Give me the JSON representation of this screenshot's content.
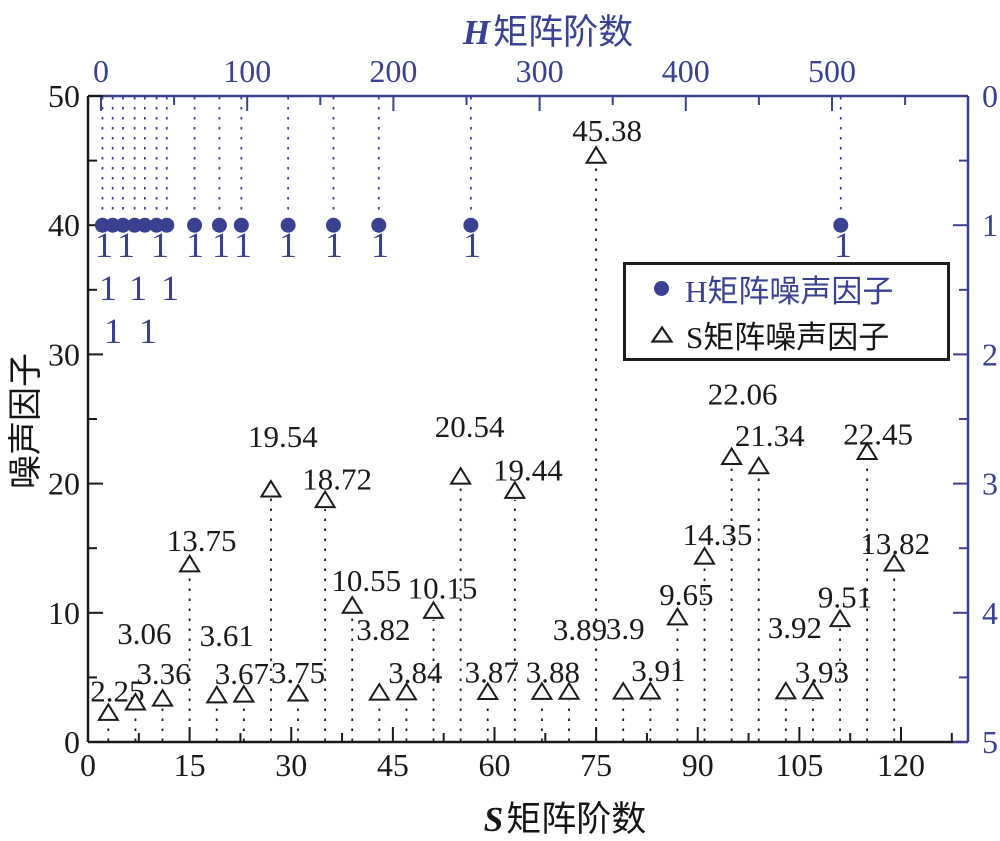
{
  "titles": {
    "top_var": "H",
    "top_text": "矩阵阶数",
    "bottom_var": "S",
    "bottom_text": "矩阵阶数",
    "left": "噪声因子"
  },
  "legend": {
    "h_label": "H矩阵噪声因子",
    "s_label": "S矩阵噪声因子",
    "h_marker": "filled-circle",
    "s_marker": "open-triangle"
  },
  "colors": {
    "navy": "#3a4191",
    "black": "#1a1a1a",
    "background": "#ffffff"
  },
  "chart_data": {
    "type": "scatter",
    "subtype": "stem",
    "axes": {
      "top": {
        "label": "H矩阵阶数",
        "range": [
          0,
          593
        ],
        "tick_labels": [
          0,
          100,
          200,
          300,
          400,
          500
        ],
        "minor_step": 50,
        "color": "navy"
      },
      "bottom": {
        "label": "S矩阵阶数",
        "range": [
          0,
          130
        ],
        "tick_labels": [
          0,
          15,
          30,
          45,
          60,
          75,
          90,
          105,
          120
        ],
        "minor_step": 7.5,
        "color": "black"
      },
      "left": {
        "label": "噪声因子",
        "range": [
          0,
          50
        ],
        "tick_labels": [
          0,
          10,
          20,
          30,
          40,
          50
        ],
        "minor_step": 5,
        "color": "black"
      },
      "right": {
        "label": "",
        "range": [
          0,
          5
        ],
        "inverted": true,
        "tick_labels": [
          0,
          1,
          2,
          3,
          4,
          5
        ],
        "minor_step": 0.5,
        "color": "navy"
      }
    },
    "grid": false,
    "legend_position": "upper-right-inside",
    "series": [
      {
        "name": "H矩阵噪声因子",
        "marker": "filled-circle",
        "color": "#3a4191",
        "x_axis": "top",
        "y_axis": "right",
        "x": [
          1,
          8,
          15,
          23,
          30,
          38,
          45,
          64,
          81,
          96,
          128,
          159,
          190,
          253,
          506
        ],
        "y": [
          1,
          1,
          1,
          1,
          1,
          1,
          1,
          1,
          1,
          1,
          1,
          1,
          1,
          1,
          1
        ]
      },
      {
        "name": "S矩阵噪声因子",
        "marker": "open-triangle",
        "color": "#1a1a1a",
        "x_axis": "bottom",
        "y_axis": "left",
        "points": [
          {
            "x": 3,
            "y": 2.25,
            "label": "2.25",
            "dx": 9,
            "dy": -22
          },
          {
            "x": 7,
            "y": 3.06,
            "label": "3.06",
            "dx": 9,
            "dy": -69
          },
          {
            "x": 11,
            "y": 3.36,
            "label": "3.36",
            "dx": 1,
            "dy": -25
          },
          {
            "x": 15,
            "y": 13.75,
            "label": "13.75",
            "dx": 12,
            "dy": -24
          },
          {
            "x": 19,
            "y": 3.61,
            "label": "3.61",
            "dx": 10,
            "dy": -60
          },
          {
            "x": 23,
            "y": 3.67,
            "label": "3.67",
            "dx": -2,
            "dy": -21
          },
          {
            "x": 27,
            "y": 19.54,
            "label": "19.54",
            "dx": 12,
            "dy": -53
          },
          {
            "x": 31,
            "y": 3.75,
            "label": "3.75",
            "dx": 0,
            "dy": -21
          },
          {
            "x": 35,
            "y": 18.72,
            "label": "18.72",
            "dx": 12,
            "dy": -21
          },
          {
            "x": 39,
            "y": 10.55,
            "label": "10.55",
            "dx": 14,
            "dy": -25
          },
          {
            "x": 43,
            "y": 3.82,
            "label": "3.82",
            "dx": 4,
            "dy": -63
          },
          {
            "x": 47,
            "y": 3.84,
            "label": "3.84",
            "dx": 9,
            "dy": -20
          },
          {
            "x": 51,
            "y": 10.15,
            "label": "10.15",
            "dx": 9,
            "dy": -23
          },
          {
            "x": 55,
            "y": 20.54,
            "label": "20.54",
            "dx": 9,
            "dy": -50
          },
          {
            "x": 59,
            "y": 3.87,
            "label": "3.87",
            "dx": 4,
            "dy": -20
          },
          {
            "x": 63,
            "y": 19.44,
            "label": "19.44",
            "dx": 13,
            "dy": -21
          },
          {
            "x": 67,
            "y": 3.88,
            "label": "3.88",
            "dx": 11,
            "dy": -20
          },
          {
            "x": 71,
            "y": 3.89,
            "label": "3.89",
            "dx": 11,
            "dy": -62
          },
          {
            "x": 75,
            "y": 45.38,
            "label": "45.38",
            "dx": 11,
            "dy": -25
          },
          {
            "x": 79,
            "y": 3.9,
            "label": "3.9",
            "dx": 2,
            "dy": -63
          },
          {
            "x": 83,
            "y": 3.91,
            "label": "3.91",
            "dx": 8,
            "dy": -21
          },
          {
            "x": 87,
            "y": 9.65,
            "label": "9.65",
            "dx": 9,
            "dy": -23
          },
          {
            "x": 91,
            "y": 14.35,
            "label": "14.35",
            "dx": 13,
            "dy": -22
          },
          {
            "x": 95,
            "y": 22.06,
            "label": "22.06",
            "dx": 11,
            "dy": -63
          },
          {
            "x": 99,
            "y": 21.34,
            "label": "21.34",
            "dx": 11,
            "dy": -31
          },
          {
            "x": 103,
            "y": 3.92,
            "label": "3.92",
            "dx": 9,
            "dy": -64
          },
          {
            "x": 107,
            "y": 3.93,
            "label": "3.93",
            "dx": 9,
            "dy": -19
          },
          {
            "x": 111,
            "y": 9.51,
            "label": "9.51",
            "dx": 5,
            "dy": -22
          },
          {
            "x": 115,
            "y": 22.45,
            "label": "22.45",
            "dx": 11,
            "dy": -18
          },
          {
            "x": 119,
            "y": 13.82,
            "label": "13.82",
            "dx": 1,
            "dy": -20
          }
        ]
      }
    ],
    "h_value_labels": {
      "text": "1",
      "rows": [
        {
          "y": 245,
          "xs": [
            104,
            126,
            160,
            195,
            221,
            243,
            288,
            334,
            380,
            472,
            843
          ]
        },
        {
          "y": 288,
          "xs": [
            108,
            138,
            170
          ]
        },
        {
          "y": 331,
          "xs": [
            113,
            148
          ]
        }
      ]
    }
  }
}
